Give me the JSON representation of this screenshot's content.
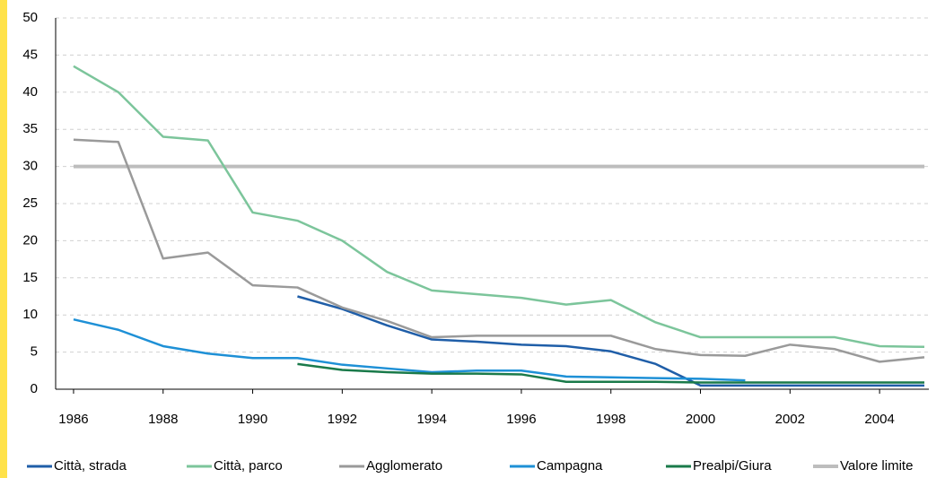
{
  "chart_data": {
    "type": "line",
    "x": [
      1986,
      1987,
      1988,
      1989,
      1990,
      1991,
      1992,
      1993,
      1994,
      1995,
      1996,
      1997,
      1998,
      1999,
      2000,
      2001,
      2002,
      2003,
      2004,
      2005
    ],
    "series": [
      {
        "name": "Città, strada",
        "color": "#1f5ea8",
        "values": [
          null,
          null,
          null,
          null,
          null,
          12.5,
          10.8,
          8.6,
          6.7,
          6.4,
          6.0,
          5.8,
          5.1,
          3.4,
          0.5,
          0.5,
          0.5,
          0.5,
          0.5,
          0.5
        ]
      },
      {
        "name": "Città, parco",
        "color": "#7cc59b",
        "values": [
          43.5,
          40,
          34,
          33.5,
          23.8,
          22.7,
          20,
          15.8,
          13.3,
          12.8,
          12.3,
          11.4,
          12,
          9,
          7,
          7,
          7,
          7,
          5.8,
          5.7
        ]
      },
      {
        "name": "Agglomerato",
        "color": "#9a9a9a",
        "values": [
          33.6,
          33.3,
          17.6,
          18.4,
          14,
          13.7,
          11,
          9.2,
          7,
          7.2,
          7.2,
          7.2,
          7.2,
          5.4,
          4.6,
          4.5,
          6,
          5.4,
          3.7,
          4.3
        ]
      },
      {
        "name": "Campagna",
        "color": "#1e90d6",
        "values": [
          9.4,
          8,
          5.8,
          4.8,
          4.2,
          4.2,
          3.3,
          2.8,
          2.3,
          2.5,
          2.5,
          1.7,
          1.6,
          1.5,
          1.4,
          1.2,
          null,
          null,
          null,
          null
        ]
      },
      {
        "name": "Prealpi/Giura",
        "color": "#1a7a4a",
        "values": [
          null,
          null,
          null,
          null,
          null,
          3.4,
          2.6,
          2.3,
          2.1,
          2.1,
          2.0,
          1.0,
          1.0,
          1.0,
          0.9,
          0.9,
          0.9,
          0.9,
          0.9,
          0.9
        ]
      },
      {
        "name": "Valore limite",
        "color": "#bdbdbd",
        "values": [
          30,
          30,
          30,
          30,
          30,
          30,
          30,
          30,
          30,
          30,
          30,
          30,
          30,
          30,
          30,
          30,
          30,
          30,
          30,
          30
        ]
      }
    ],
    "xlim": [
      1985.6,
      2005.1
    ],
    "xticks": [
      1986,
      1988,
      1990,
      1992,
      1994,
      1996,
      1998,
      2000,
      2002,
      2004
    ],
    "ylim": [
      0,
      50
    ],
    "yticks": [
      0,
      5,
      10,
      15,
      20,
      25,
      30,
      35,
      40,
      45,
      50
    ],
    "grid": true,
    "legend": "bottom"
  }
}
